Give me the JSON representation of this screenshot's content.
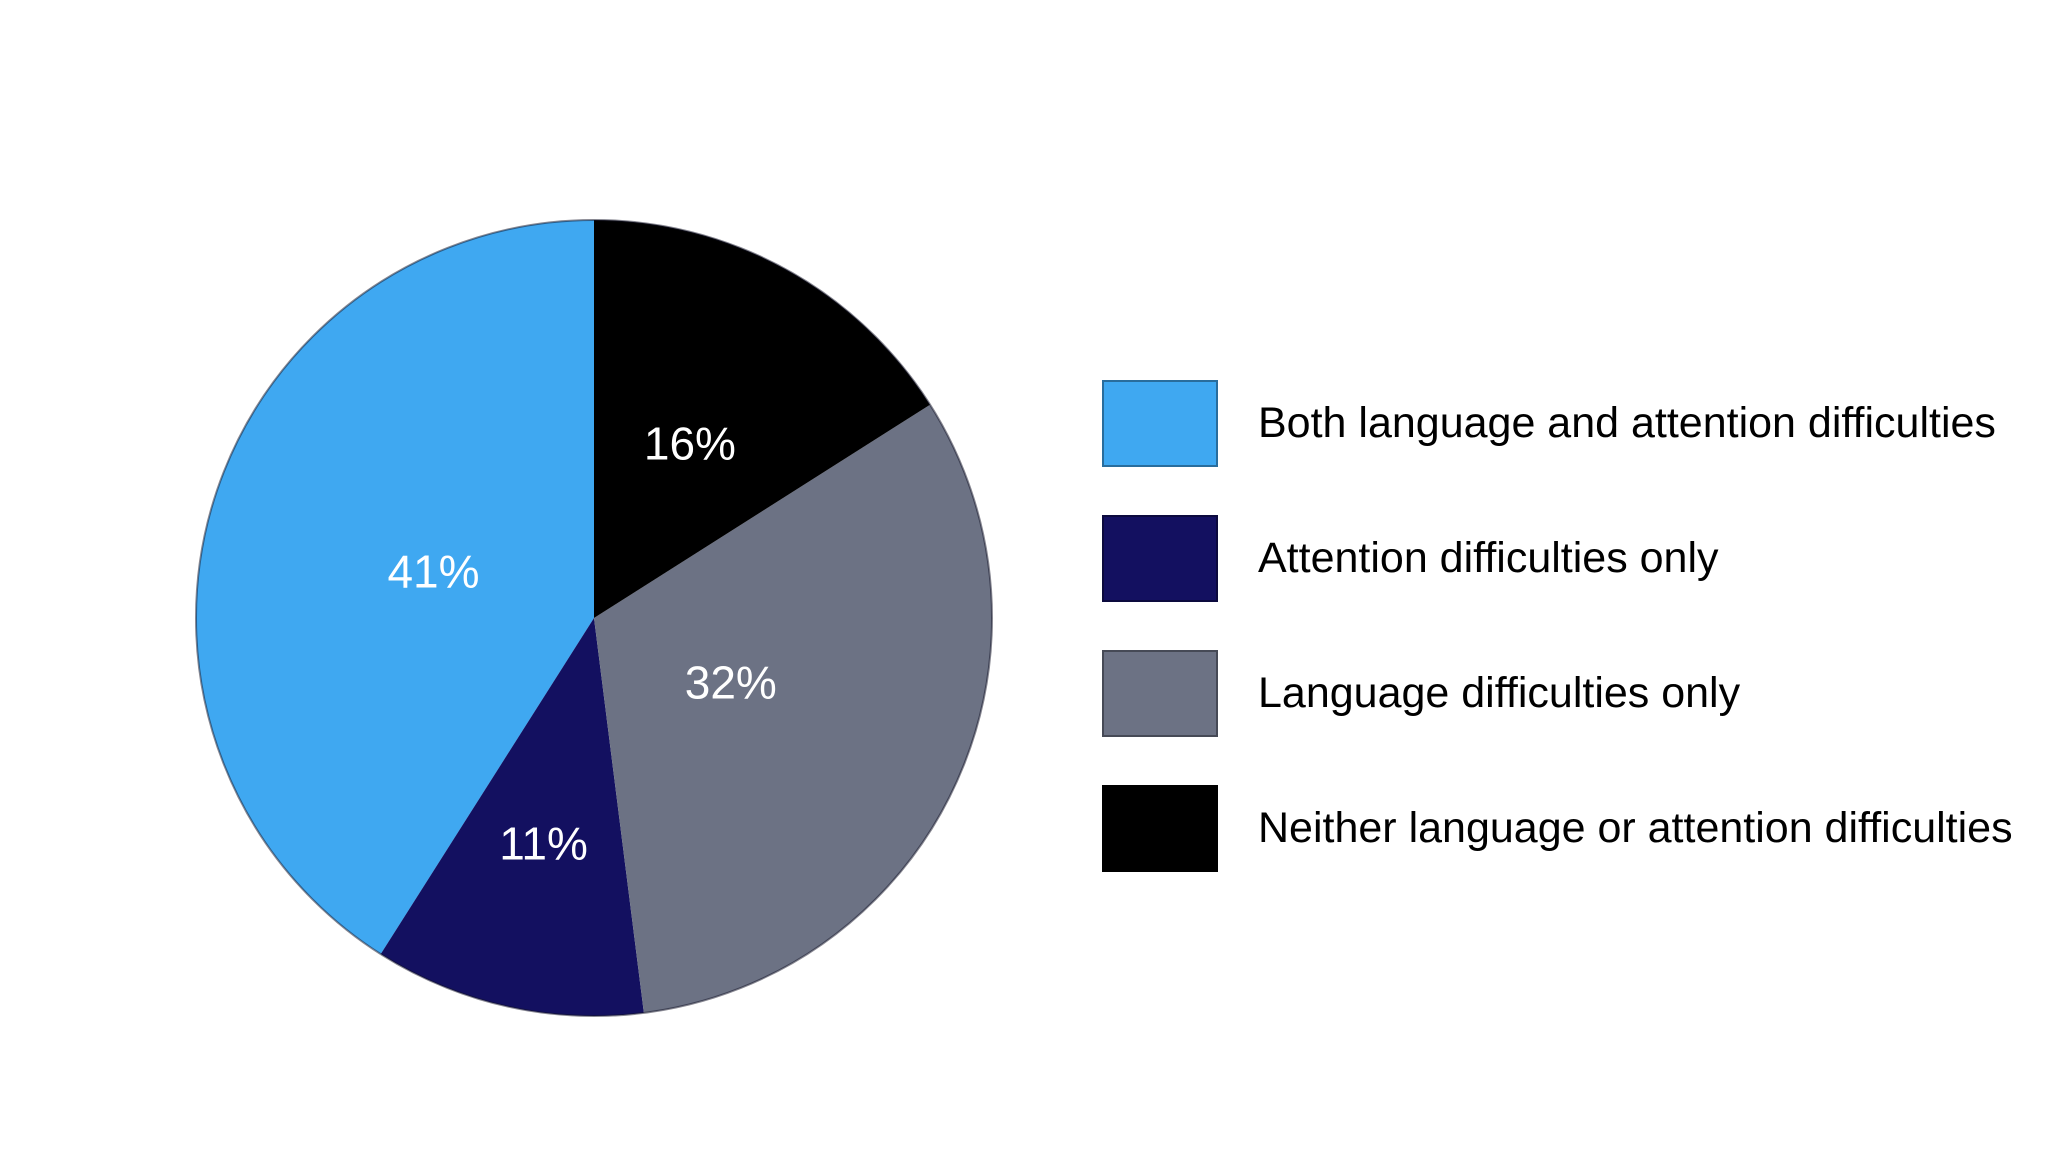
{
  "page": {
    "background_color": "#FFFFFF"
  },
  "chart_data": {
    "type": "pie",
    "title": "",
    "slices": [
      {
        "label": "Both language and attention difficulties",
        "value": 41,
        "percent_label": "41%",
        "color": "#3FA8F1",
        "label_radius": 0.42
      },
      {
        "label": "Attention difficulties only",
        "value": 11,
        "percent_label": "11%",
        "color": "#131060",
        "label_radius": 0.58
      },
      {
        "label": "Language difficulties only",
        "value": 32,
        "percent_label": "32%",
        "color": "#6C7284",
        "label_radius": 0.38
      },
      {
        "label": "Neither language or attention difficulties",
        "value": 16,
        "percent_label": "16%",
        "color": "#000000",
        "label_radius": 0.5
      }
    ],
    "start_angle_deg": 90,
    "direction": "counterclockwise",
    "legend_position": "right",
    "percent_label_color": "#FFFFFF",
    "outline_color": "rgba(15,15,35,0.5)"
  }
}
